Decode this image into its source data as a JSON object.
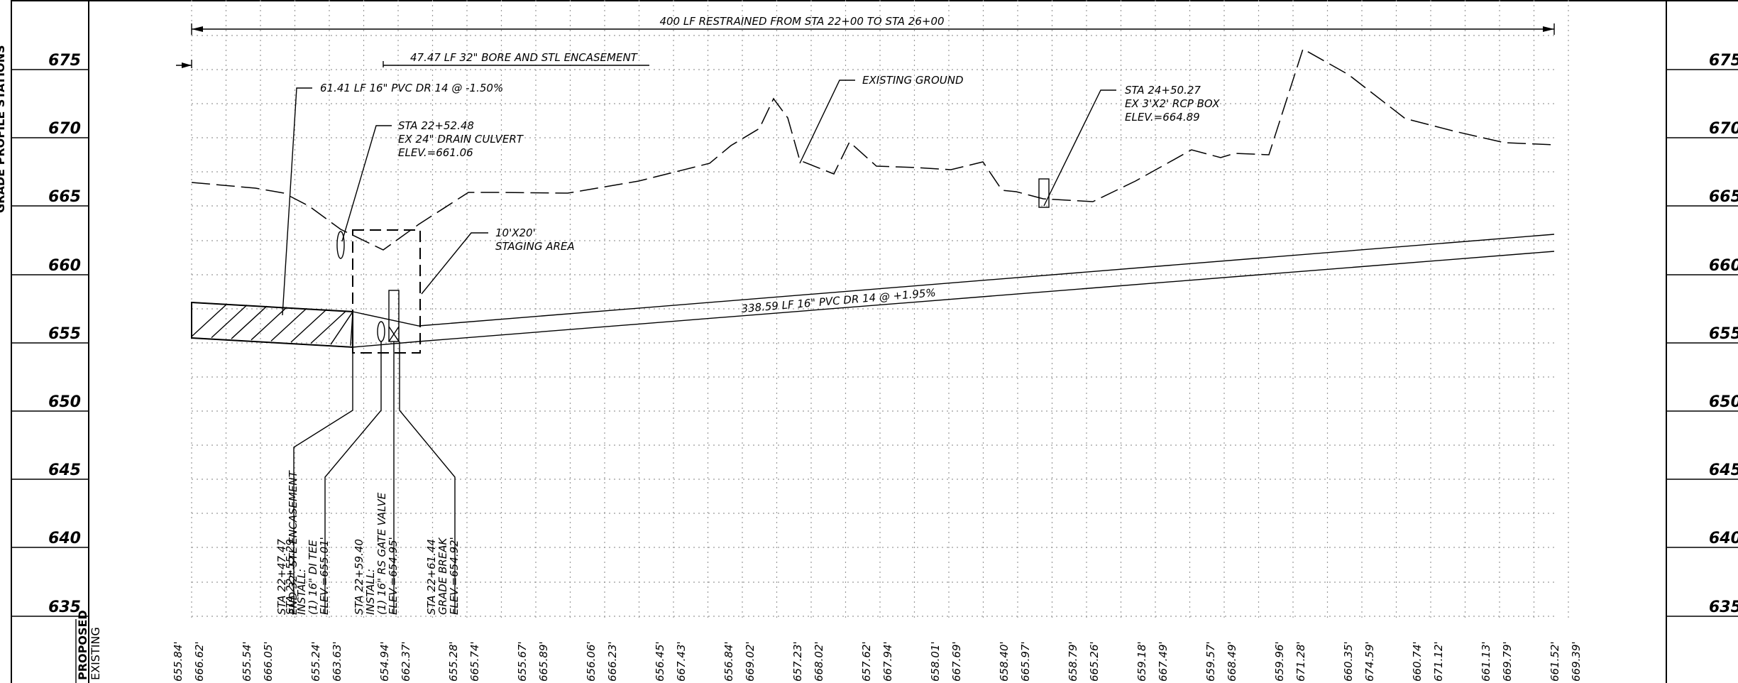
{
  "elevation_labels": [
    "675",
    "670",
    "665",
    "660",
    "655",
    "650",
    "645",
    "640",
    "635"
  ],
  "row_labels": {
    "proposed": "PROPOSED",
    "existing": "EXISTING"
  },
  "restrained_note": "400 LF RESTRAINED FROM STA 22+00 TO STA 26+00",
  "bore_note": "47.47 LF 32\" BORE AND STL ENCASEMENT",
  "pvc_left_note": "61.41 LF 16\" PVC DR 14 @ -1.50%",
  "culvert_note": [
    "STA 22+52.48",
    "EX 24\" DRAIN CULVERT",
    "ELEV.=661.06"
  ],
  "existing_ground_note": "EXISTING GROUND",
  "rcp_box_note": [
    "STA 24+50.27",
    "EX 3'X2' RCP BOX",
    "ELEV.=664.89"
  ],
  "staging_note": [
    "10'X20'",
    "STAGING AREA"
  ],
  "pvc_right_note": "338.59 LF 16\" PVC DR 14 @ +1.95%",
  "station_callouts": [
    [
      "STA 22+47.47",
      "END 32\" STL ENCASEMENT"
    ],
    [
      "STA 22+55.29",
      "INSTALL:",
      "(1) 16\" DI TEE",
      "ELEV.=655.01'"
    ],
    [
      "STA 22+59.40",
      "INSTALL:",
      "(1) 16\" RS GATE VALVE",
      "ELEV.=654.95'"
    ],
    [
      "STA 22+61.44",
      "GRADE BREAK",
      "ELEV.=654.92'"
    ]
  ],
  "station_elevations": [
    [
      "655.84'",
      "666.62'"
    ],
    [
      "655.54'",
      "666.05'"
    ],
    [
      "655.24'",
      "663.63'"
    ],
    [
      "654.94'",
      "662.37'"
    ],
    [
      "655.28'",
      "665.74'"
    ],
    [
      "655.67'",
      "665.89'"
    ],
    [
      "656.06'",
      "666.23'"
    ],
    [
      "656.45'",
      "667.43'"
    ],
    [
      "656.84'",
      "669.02'"
    ],
    [
      "657.23'",
      "668.02'"
    ],
    [
      "657.62'",
      "667.94'"
    ],
    [
      "658.01'",
      "667.69'"
    ],
    [
      "658.40'",
      "665.97'"
    ],
    [
      "658.79'",
      "665.26'"
    ],
    [
      "659.18'",
      "667.49'"
    ],
    [
      "659.57'",
      "668.49'"
    ],
    [
      "659.96'",
      "671.28'"
    ],
    [
      "660.35'",
      "674.59'"
    ],
    [
      "660.74'",
      "671.12'"
    ],
    [
      "661.13'",
      "669.79'"
    ],
    [
      "661.52'",
      "669.39'"
    ]
  ],
  "sidebar_fragment": "GRADE PROFILE STATIONS"
}
